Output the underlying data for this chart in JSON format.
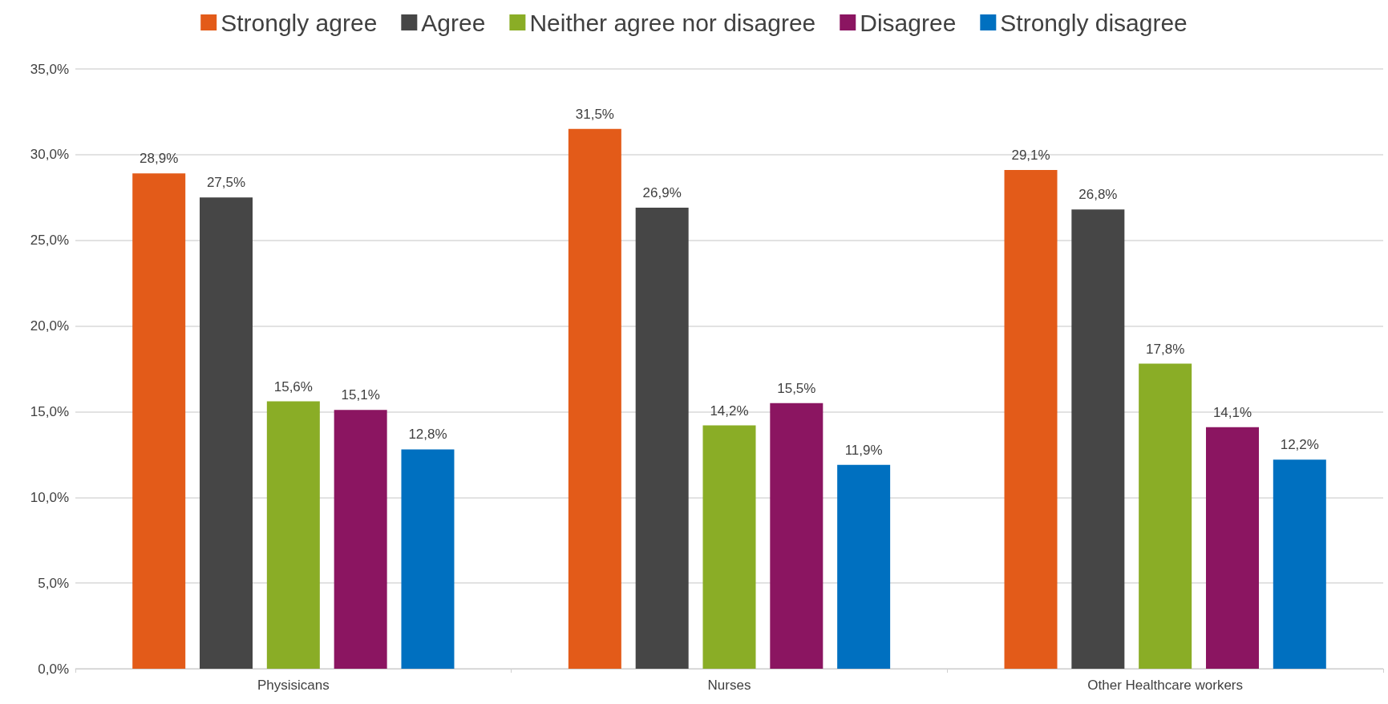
{
  "chart_data": {
    "type": "bar",
    "categories": [
      "Physisicans",
      "Nurses",
      "Other Healthcare workers"
    ],
    "series": [
      {
        "name": "Strongly agree",
        "color": "#e35b19",
        "values": [
          28.9,
          31.5,
          29.1
        ],
        "value_labels": [
          "28,9%",
          "31,5%",
          "29,1%"
        ]
      },
      {
        "name": "Agree",
        "color": "#464646",
        "values": [
          27.5,
          26.9,
          26.8
        ],
        "value_labels": [
          "27,5%",
          "26,9%",
          "26,8%"
        ]
      },
      {
        "name": "Neither agree nor disagree",
        "color": "#8aad26",
        "values": [
          15.6,
          14.2,
          17.8
        ],
        "value_labels": [
          "15,6%",
          "14,2%",
          "17,8%"
        ]
      },
      {
        "name": "Disagree",
        "color": "#8b1561",
        "values": [
          15.1,
          15.5,
          14.1
        ],
        "value_labels": [
          "15,1%",
          "15,5%",
          "14,1%"
        ]
      },
      {
        "name": "Strongly disagree",
        "color": "#0070c0",
        "values": [
          12.8,
          11.9,
          12.2
        ],
        "value_labels": [
          "12,8%",
          "11,9%",
          "12,2%"
        ]
      }
    ],
    "ylim": [
      0,
      35
    ],
    "yticks": [
      {
        "value": 0,
        "label": "0,0%"
      },
      {
        "value": 5,
        "label": "5,0%"
      },
      {
        "value": 10,
        "label": "10,0%"
      },
      {
        "value": 15,
        "label": "15,0%"
      },
      {
        "value": 20,
        "label": "20,0%"
      },
      {
        "value": 25,
        "label": "25,0%"
      },
      {
        "value": 30,
        "label": "30,0%"
      },
      {
        "value": 35,
        "label": "35,0%"
      }
    ],
    "grid": "y",
    "legend": "top"
  }
}
